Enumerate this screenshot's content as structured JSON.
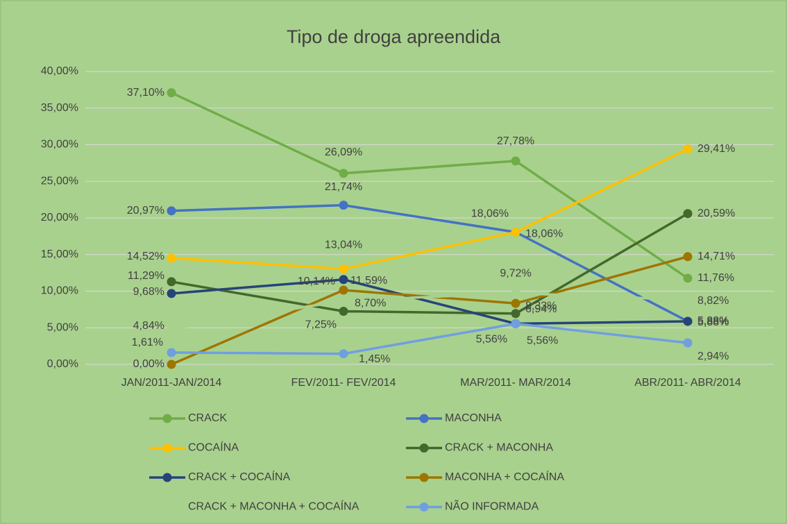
{
  "chart_data": {
    "type": "line",
    "title": "Tipo de droga apreendida",
    "categories": [
      "JAN/2011-JAN/2014",
      "FEV/2011- FEV/2014",
      "MAR/2011- MAR/2014",
      "ABR/2011- ABR/2014"
    ],
    "ylim": [
      0,
      40
    ],
    "yticks": [
      {
        "value": 0,
        "label": "0,00%"
      },
      {
        "value": 5,
        "label": "5,00%"
      },
      {
        "value": 10,
        "label": "10,00%"
      },
      {
        "value": 15,
        "label": "15,00%"
      },
      {
        "value": 20,
        "label": "20,00%"
      },
      {
        "value": 25,
        "label": "25,00%"
      },
      {
        "value": 30,
        "label": "30,00%"
      },
      {
        "value": 35,
        "label": "35,00%"
      },
      {
        "value": 40,
        "label": "40,00%"
      }
    ],
    "grid": true,
    "series": [
      {
        "name": "CRACK",
        "color": "#70ad47",
        "values": [
          37.1,
          26.09,
          27.78,
          11.76
        ],
        "value_labels": [
          "37,10%",
          "26,09%",
          "27,78%",
          "11,76%"
        ]
      },
      {
        "name": "MACONHA",
        "color": "#4472c4",
        "values": [
          20.97,
          21.74,
          18.06,
          5.88
        ],
        "value_labels": [
          "20,97%",
          "21,74%",
          "18,06%",
          "5,88%"
        ]
      },
      {
        "name": "COCAÍNA",
        "color": "#ffc000",
        "values": [
          14.52,
          13.04,
          18.06,
          29.41
        ],
        "value_labels": [
          "14,52%",
          "13,04%",
          "18,06%",
          "29,41%"
        ]
      },
      {
        "name": "CRACK + MACONHA",
        "color": "#43682b",
        "values": [
          11.29,
          7.25,
          6.94,
          20.59
        ],
        "value_labels": [
          "11,29%",
          "7,25%",
          "6,94%",
          "20,59%"
        ]
      },
      {
        "name": "CRACK + COCAÍNA",
        "color": "#264478",
        "values": [
          9.68,
          11.59,
          5.56,
          5.88
        ],
        "value_labels": [
          "9,68%",
          "11,59%",
          "5,56%",
          "5,88%"
        ]
      },
      {
        "name": "MACONHA + COCAÍNA",
        "color": "#9e7500",
        "values": [
          0.0,
          10.14,
          8.33,
          14.71
        ],
        "value_labels": [
          "0,00%",
          "10,14%",
          "8,33%",
          "14,71%"
        ]
      },
      {
        "name": "CRACK + MACONHA + COCAÍNA",
        "color": "#a9d18e",
        "values": [
          4.84,
          8.7,
          9.72,
          8.82
        ],
        "value_labels": [
          "4,84%",
          "8,70%",
          "9,72%",
          "8,82%"
        ]
      },
      {
        "name": "NÃO INFORMADA",
        "color": "#6f9fe0",
        "values": [
          1.61,
          1.45,
          5.56,
          2.94
        ],
        "value_labels": [
          "1,61%",
          "1,45%",
          "5,56%",
          "2,94%"
        ]
      }
    ]
  }
}
